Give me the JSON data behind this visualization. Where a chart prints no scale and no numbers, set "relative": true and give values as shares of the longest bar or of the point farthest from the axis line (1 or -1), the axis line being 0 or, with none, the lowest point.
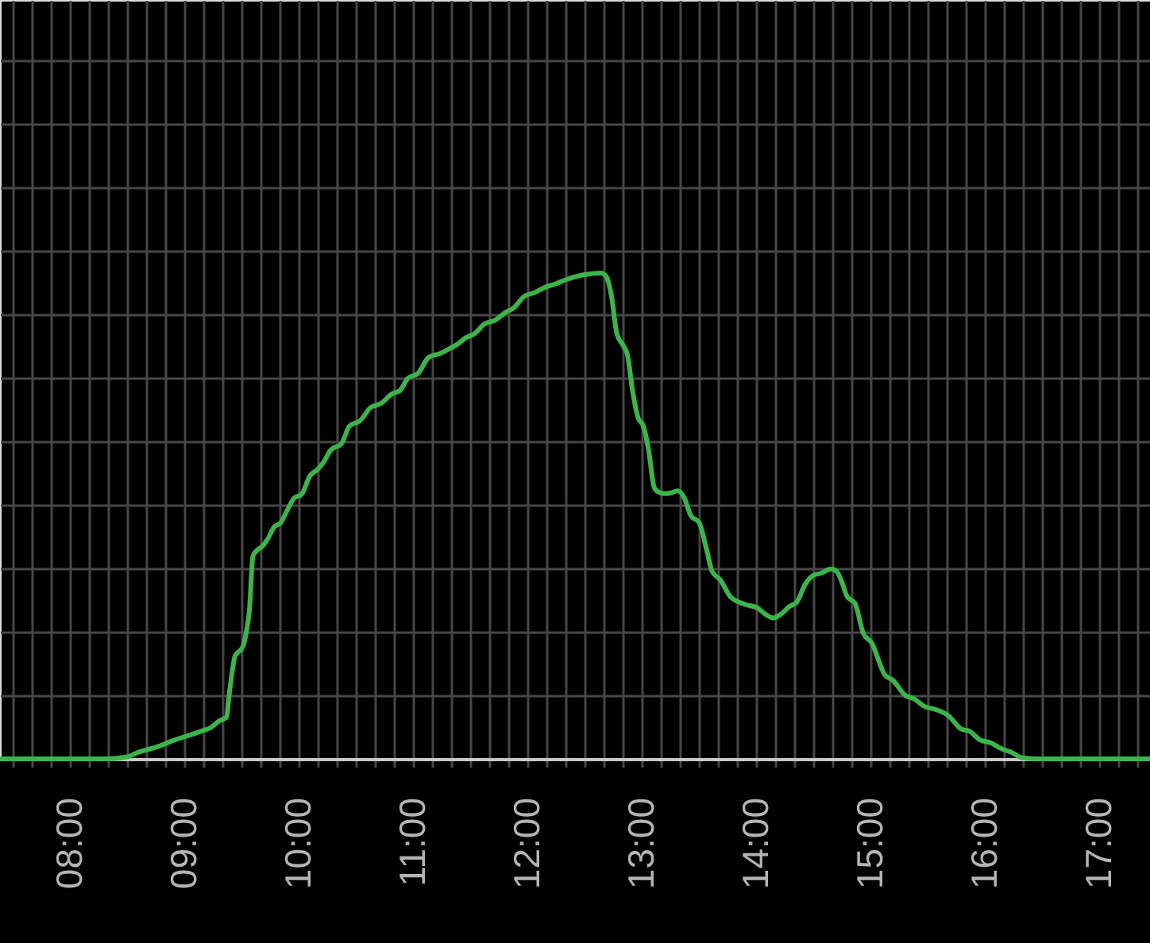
{
  "chart_data": {
    "type": "line",
    "relative": true,
    "grid": true,
    "line_style": "solid",
    "xlim": [
      7.389,
      17.444
    ],
    "xticks": [
      {
        "value": 7.5,
        "label": null
      },
      {
        "value": 7.667,
        "label": null
      },
      {
        "value": 7.833,
        "label": null
      },
      {
        "value": 8,
        "label": "08:00"
      },
      {
        "value": 8.167,
        "label": null
      },
      {
        "value": 8.333,
        "label": null
      },
      {
        "value": 8.5,
        "label": null
      },
      {
        "value": 8.667,
        "label": null
      },
      {
        "value": 8.833,
        "label": null
      },
      {
        "value": 9,
        "label": "09:00"
      },
      {
        "value": 9.167,
        "label": null
      },
      {
        "value": 9.333,
        "label": null
      },
      {
        "value": 9.5,
        "label": null
      },
      {
        "value": 9.667,
        "label": null
      },
      {
        "value": 9.833,
        "label": null
      },
      {
        "value": 10,
        "label": "10:00"
      },
      {
        "value": 10.167,
        "label": null
      },
      {
        "value": 10.333,
        "label": null
      },
      {
        "value": 10.5,
        "label": null
      },
      {
        "value": 10.667,
        "label": null
      },
      {
        "value": 10.833,
        "label": null
      },
      {
        "value": 11,
        "label": "11:00"
      },
      {
        "value": 11.167,
        "label": null
      },
      {
        "value": 11.333,
        "label": null
      },
      {
        "value": 11.5,
        "label": null
      },
      {
        "value": 11.667,
        "label": null
      },
      {
        "value": 11.833,
        "label": null
      },
      {
        "value": 12,
        "label": "12:00"
      },
      {
        "value": 12.167,
        "label": null
      },
      {
        "value": 12.333,
        "label": null
      },
      {
        "value": 12.5,
        "label": null
      },
      {
        "value": 12.667,
        "label": null
      },
      {
        "value": 12.833,
        "label": null
      },
      {
        "value": 13,
        "label": "13:00"
      },
      {
        "value": 13.167,
        "label": null
      },
      {
        "value": 13.333,
        "label": null
      },
      {
        "value": 13.5,
        "label": null
      },
      {
        "value": 13.667,
        "label": null
      },
      {
        "value": 13.833,
        "label": null
      },
      {
        "value": 14,
        "label": "14:00"
      },
      {
        "value": 14.167,
        "label": null
      },
      {
        "value": 14.333,
        "label": null
      },
      {
        "value": 14.5,
        "label": null
      },
      {
        "value": 14.667,
        "label": null
      },
      {
        "value": 14.833,
        "label": null
      },
      {
        "value": 15,
        "label": "15:00"
      },
      {
        "value": 15.167,
        "label": null
      },
      {
        "value": 15.333,
        "label": null
      },
      {
        "value": 15.5,
        "label": null
      },
      {
        "value": 15.667,
        "label": null
      },
      {
        "value": 15.833,
        "label": null
      },
      {
        "value": 16,
        "label": "16:00"
      },
      {
        "value": 16.167,
        "label": null
      },
      {
        "value": 16.333,
        "label": null
      },
      {
        "value": 16.5,
        "label": null
      },
      {
        "value": 16.667,
        "label": null
      },
      {
        "value": 16.833,
        "label": null
      },
      {
        "value": 17,
        "label": "17:00"
      },
      {
        "value": 17.167,
        "label": null
      },
      {
        "value": 17.333,
        "label": null
      }
    ],
    "x": [
      7.389,
      8.319,
      8.5,
      8.593,
      8.778,
      8.917,
      9.01,
      9.149,
      9.236,
      9.306,
      9.371,
      9.389,
      9.426,
      9.444,
      9.496,
      9.514,
      9.542,
      9.569,
      9.601,
      9.635,
      9.681,
      9.726,
      9.788,
      9.843,
      9.899,
      9.958,
      10.028,
      10.097,
      10.167,
      10.213,
      10.282,
      10.375,
      10.444,
      10.538,
      10.629,
      10.722,
      10.815,
      10.885,
      10.954,
      11.046,
      11.139,
      11.232,
      11.324,
      11.393,
      11.463,
      11.532,
      11.625,
      11.718,
      11.81,
      11.879,
      11.972,
      12.065,
      12.157,
      12.25,
      12.343,
      12.482,
      12.643,
      12.69,
      12.736,
      12.782,
      12.84,
      12.875,
      12.921,
      12.968,
      13.014,
      13.06,
      13.107,
      13.129,
      13.194,
      13.25,
      13.315,
      13.371,
      13.431,
      13.5,
      13.569,
      13.615,
      13.685,
      13.778,
      13.847,
      13.917,
      14.01,
      14.079,
      14.149,
      14.218,
      14.288,
      14.357,
      14.426,
      14.496,
      14.565,
      14.657,
      14.704,
      14.75,
      14.796,
      14.865,
      14.938,
      15.01,
      15.125,
      15.194,
      15.31,
      15.379,
      15.472,
      15.565,
      15.681,
      15.796,
      15.865,
      15.958,
      16.051,
      16.143,
      16.236,
      16.329,
      16.49,
      17.444
    ],
    "series": [
      {
        "color": "#3cb44b",
        "values": [
          0,
          0,
          0.004,
          0.013,
          0.026,
          0.039,
          0.046,
          0.057,
          0.065,
          0.078,
          0.086,
          0.124,
          0.19,
          0.212,
          0.225,
          0.232,
          0.26,
          0.304,
          0.418,
          0.429,
          0.437,
          0.451,
          0.478,
          0.486,
          0.511,
          0.536,
          0.545,
          0.582,
          0.596,
          0.609,
          0.636,
          0.649,
          0.685,
          0.696,
          0.723,
          0.732,
          0.751,
          0.758,
          0.783,
          0.794,
          0.827,
          0.834,
          0.845,
          0.854,
          0.867,
          0.874,
          0.895,
          0.903,
          0.919,
          0.928,
          0.952,
          0.96,
          0.971,
          0.978,
          0.987,
          0.996,
          1,
          0.993,
          0.952,
          0.876,
          0.85,
          0.832,
          0.756,
          0.702,
          0.685,
          0.636,
          0.56,
          0.552,
          0.546,
          0.547,
          0.552,
          0.538,
          0.5,
          0.487,
          0.429,
          0.386,
          0.369,
          0.333,
          0.323,
          0.317,
          0.311,
          0.298,
          0.29,
          0.298,
          0.313,
          0.323,
          0.358,
          0.377,
          0.382,
          0.391,
          0.386,
          0.364,
          0.334,
          0.32,
          0.258,
          0.239,
          0.173,
          0.162,
          0.13,
          0.124,
          0.108,
          0.102,
          0.089,
          0.061,
          0.057,
          0.039,
          0.033,
          0.021,
          0.013,
          0.002,
          0,
          0
        ]
      }
    ]
  }
}
